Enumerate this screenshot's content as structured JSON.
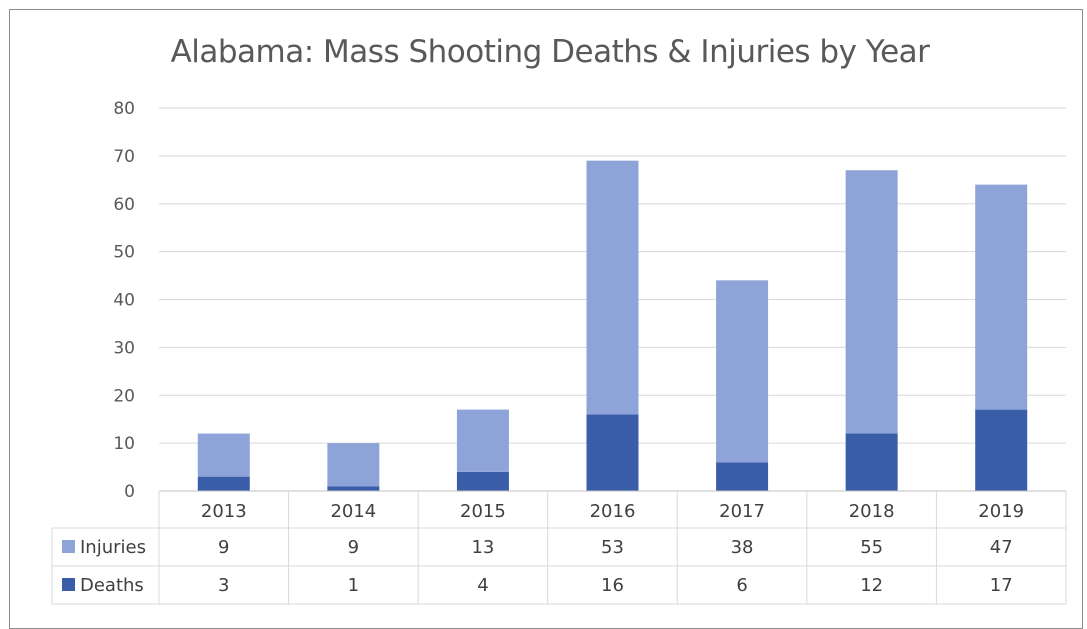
{
  "chart_data": {
    "type": "bar",
    "stacked": true,
    "title": "Alabama: Mass Shooting Deaths & Injuries by Year",
    "categories": [
      "2013",
      "2014",
      "2015",
      "2016",
      "2017",
      "2018",
      "2019"
    ],
    "series": [
      {
        "name": "Deaths",
        "values": [
          3,
          1,
          4,
          16,
          6,
          12,
          17
        ],
        "color": "#3a5daa"
      },
      {
        "name": "Injuries",
        "values": [
          9,
          9,
          13,
          53,
          38,
          55,
          47
        ],
        "color": "#8ea3d8"
      }
    ],
    "ylim": [
      0,
      80
    ],
    "yticks": [
      0,
      10,
      20,
      30,
      40,
      50,
      60,
      70,
      80
    ],
    "grid": true,
    "legend": "data-table"
  }
}
